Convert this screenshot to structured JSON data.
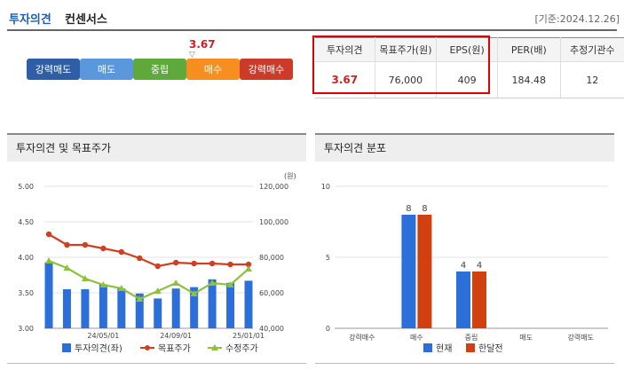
{
  "header": {
    "title": "투자의견",
    "subtitle": "컨센서스",
    "date": "[기준:2024.12.26]"
  },
  "opinion_scale": {
    "current_value": "3.67",
    "marker": "▽",
    "segments": [
      {
        "label": "강력매도",
        "color": "#2d5ea6"
      },
      {
        "label": "매도",
        "color": "#5b97dd"
      },
      {
        "label": "중립",
        "color": "#5ea83c"
      },
      {
        "label": "매수",
        "color": "#f68f1f"
      },
      {
        "label": "강력매수",
        "color": "#cc3b2a"
      }
    ],
    "current_segment": "매수"
  },
  "summary": {
    "headers": [
      "투자의견",
      "목표주가(원)",
      "EPS(원)",
      "PER(배)",
      "추정기관수"
    ],
    "values": [
      "3.67",
      "76,000",
      "409",
      "184.48",
      "12"
    ]
  },
  "chart_data": [
    {
      "type": "bar",
      "title": "투자의견 및 목표주가",
      "y2label": "(원)",
      "x_ticks": [
        "24/05/01",
        "24/09/01",
        "25/01/01"
      ],
      "ylim": [
        3.0,
        5.0
      ],
      "y_ticks": [
        "5.00",
        "4.50",
        "4.00",
        "3.50",
        "3.00"
      ],
      "y2lim": [
        40000,
        120000
      ],
      "y2_ticks": [
        "120,000",
        "100,000",
        "80,000",
        "60,000",
        "40,000"
      ],
      "grid": true,
      "legend_position": "bottom",
      "series": [
        {
          "name": "투자의견(좌)",
          "kind": "bar",
          "axis": "left",
          "color": "#2c6fd8",
          "values": [
            3.93,
            3.55,
            3.55,
            3.62,
            3.56,
            3.49,
            3.42,
            3.56,
            3.58,
            3.69,
            3.64,
            3.67
          ]
        },
        {
          "name": "목표주가",
          "kind": "line",
          "axis": "right",
          "color": "#d04020",
          "values": [
            93000,
            87000,
            87000,
            85000,
            83000,
            79500,
            75000,
            77000,
            76500,
            76500,
            76000,
            76000
          ]
        },
        {
          "name": "수정주가",
          "kind": "line",
          "axis": "right",
          "color": "#8cc23c",
          "values": [
            78000,
            74000,
            68000,
            64500,
            62500,
            56500,
            61000,
            65500,
            59500,
            65500,
            64500,
            73500
          ]
        }
      ]
    },
    {
      "type": "bar",
      "title": "투자의견 분포",
      "categories": [
        "강력매수",
        "매수",
        "중립",
        "매도",
        "강력매도"
      ],
      "ylim": [
        0,
        10
      ],
      "y_ticks": [
        "10",
        "5",
        "0"
      ],
      "grid": true,
      "legend_position": "bottom",
      "series": [
        {
          "name": "현재",
          "color": "#2c6fd8",
          "values": [
            0,
            8,
            4,
            0,
            0
          ]
        },
        {
          "name": "한달전",
          "color": "#d04010",
          "values": [
            0,
            8,
            4,
            0,
            0
          ]
        }
      ]
    }
  ]
}
